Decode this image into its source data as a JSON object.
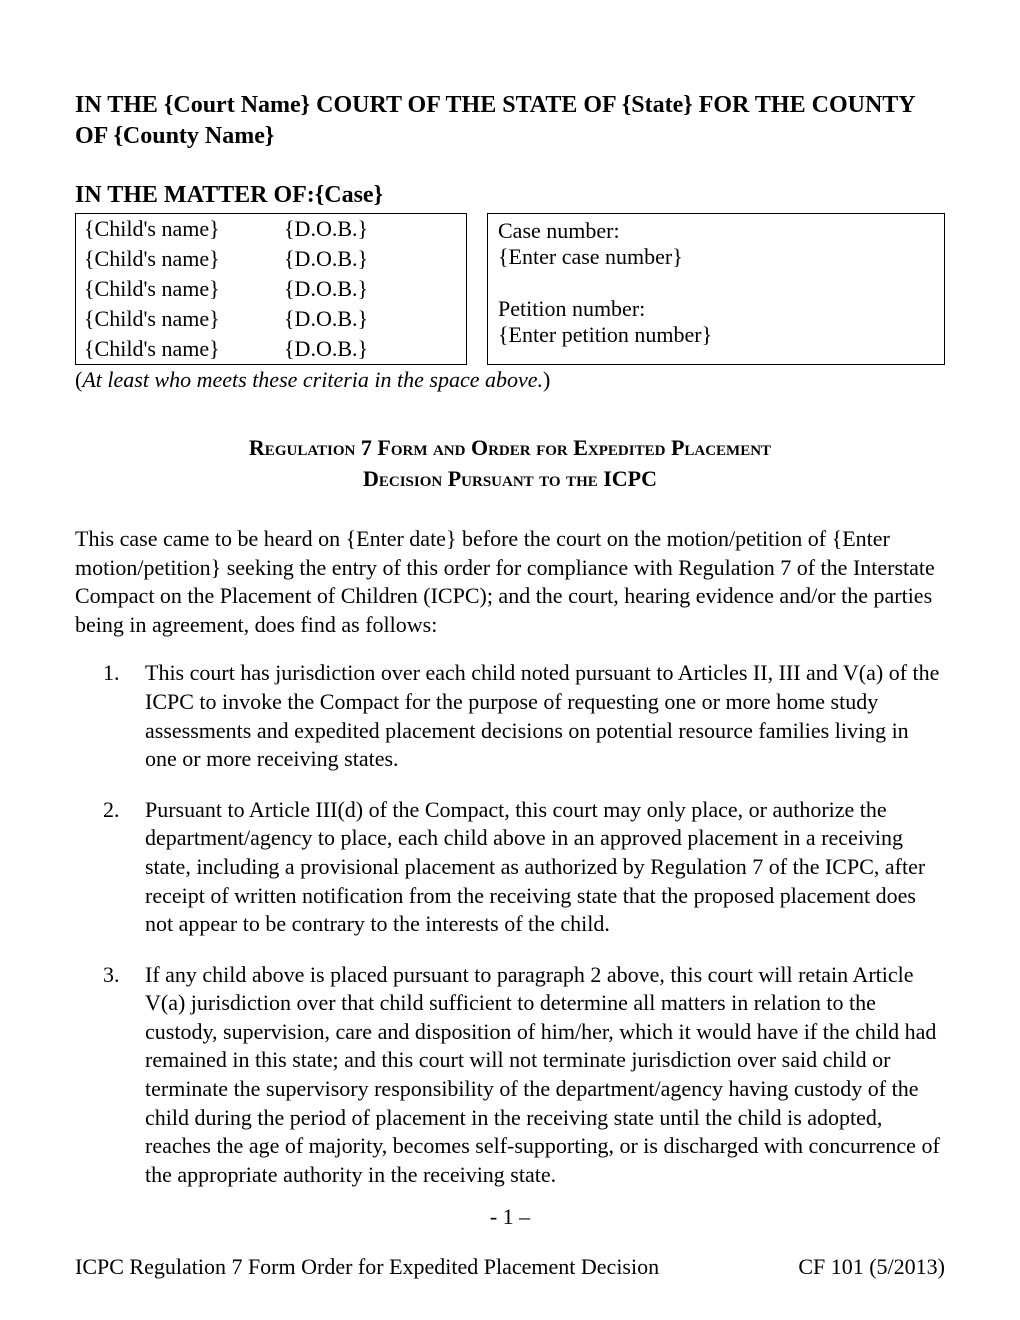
{
  "header": {
    "court_line": "IN THE {Court Name} COURT OF THE STATE OF {State} FOR THE COUNTY OF {County Name}",
    "matter_line": "IN THE MATTER OF:{Case}"
  },
  "children": [
    {
      "name": "{Child's name}",
      "dob": "{D.O.B.}"
    },
    {
      "name": "{Child's name}",
      "dob": "{D.O.B.}"
    },
    {
      "name": "{Child's name}",
      "dob": "{D.O.B.}"
    },
    {
      "name": "{Child's name}",
      "dob": "{D.O.B.}"
    },
    {
      "name": "{Child's name}",
      "dob": "{D.O.B.}"
    }
  ],
  "case": {
    "case_number_label": "Case number:",
    "case_number_value": "{Enter case number}",
    "petition_number_label": "Petition number:",
    "petition_number_value": "{Enter petition number}"
  },
  "criteria_note": "At least  who meets these criteria in the space above.",
  "title": {
    "line1": "Regulation 7 Form and Order for Expedited Placement",
    "line2": "Decision Pursuant to the ICPC"
  },
  "intro": "This case came to be heard on {Enter date} before the court on the motion/petition of {Enter motion/petition} seeking the entry of this order for compliance with Regulation 7 of the Interstate Compact on the Placement of Children (ICPC); and the court, hearing evidence and/or the parties being in agreement, does find as follows:",
  "findings": [
    "This court has jurisdiction over each child noted pursuant to Articles II, III and V(a) of the ICPC to invoke the Compact for the purpose of requesting one or more home study assessments and expedited placement decisions on potential resource families living in one or more receiving states.",
    "Pursuant to Article III(d) of the Compact, this court may only place, or authorize the department/agency to place, each child above in an approved placement in a receiving state, including a provisional placement as authorized by Regulation 7 of the ICPC, after receipt of written notification from the receiving state that the proposed placement does not appear to be contrary to the interests of the child.",
    "If any child above is placed pursuant to paragraph 2 above, this court will retain Article V(a) jurisdiction over that child sufficient to determine all matters in relation to the custody, supervision, care and disposition of him/her, which it would have if the child had remained in this state; and this court will not terminate jurisdiction over said child or terminate the supervisory responsibility of the department/agency having custody of the child during the period of placement in the receiving state until the child is adopted, reaches the age of majority, becomes self-supporting, or is discharged with concurrence of the appropriate authority in the receiving state."
  ],
  "page_number": "- 1 –",
  "footer": {
    "left": "ICPC Regulation 7 Form Order for Expedited Placement Decision",
    "right": "CF 101 (5/2013)"
  }
}
